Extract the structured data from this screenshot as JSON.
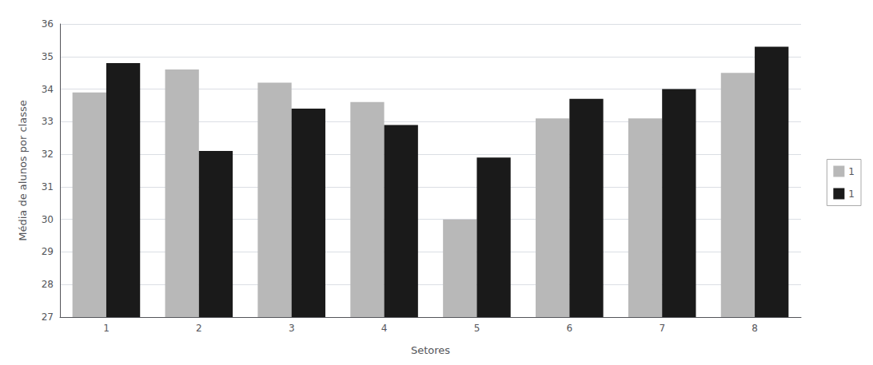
{
  "chart_data": {
    "type": "bar",
    "categories": [
      1,
      2,
      3,
      4,
      5,
      6,
      7,
      8
    ],
    "series": [
      {
        "name": "1",
        "color": "#b8b8b8",
        "values": [
          33.9,
          34.6,
          34.2,
          33.6,
          30.0,
          33.1,
          33.1,
          34.5
        ]
      },
      {
        "name": "1",
        "color": "#1a1a1a",
        "values": [
          34.8,
          32.1,
          33.4,
          32.9,
          31.9,
          33.7,
          34.0,
          35.3
        ]
      }
    ],
    "xlabel": "Setores",
    "ylabel": "Média de alunos por classe",
    "ylim": [
      27,
      36
    ],
    "yticks": [
      27,
      28,
      29,
      30,
      31,
      32,
      33,
      34,
      35,
      36
    ],
    "grid": true,
    "legend": "right"
  }
}
